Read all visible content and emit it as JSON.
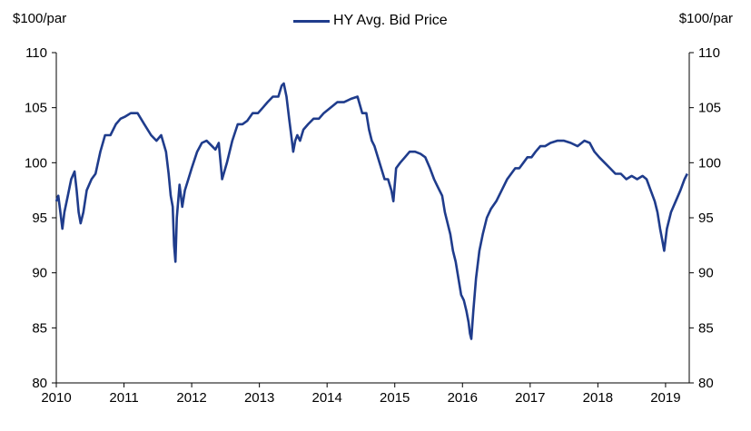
{
  "chart_data": {
    "type": "line",
    "title": "",
    "y_unit_left": "$100/par",
    "y_unit_right": "$100/par",
    "ylim": [
      80,
      110
    ],
    "yticks": [
      80,
      85,
      90,
      95,
      100,
      105,
      110
    ],
    "xlim": [
      2010,
      2019.35
    ],
    "xticks": [
      "2010",
      "2011",
      "2012",
      "2013",
      "2014",
      "2015",
      "2016",
      "2017",
      "2018",
      "2019"
    ],
    "grid": false,
    "legend_position": "top-center",
    "series": [
      {
        "name": "HY Avg. Bid Price",
        "color": "#1f3c8c",
        "x": [
          2010.0,
          2010.03,
          2010.06,
          2010.09,
          2010.12,
          2010.17,
          2010.22,
          2010.27,
          2010.3,
          2010.33,
          2010.36,
          2010.4,
          2010.45,
          2010.52,
          2010.58,
          2010.65,
          2010.72,
          2010.8,
          2010.88,
          2010.95,
          2011.02,
          2011.1,
          2011.2,
          2011.3,
          2011.4,
          2011.48,
          2011.55,
          2011.62,
          2011.66,
          2011.69,
          2011.72,
          2011.74,
          2011.76,
          2011.78,
          2011.82,
          2011.86,
          2011.9,
          2011.95,
          2012.0,
          2012.08,
          2012.15,
          2012.22,
          2012.3,
          2012.35,
          2012.4,
          2012.45,
          2012.52,
          2012.6,
          2012.68,
          2012.75,
          2012.82,
          2012.9,
          2012.98,
          2013.05,
          2013.12,
          2013.2,
          2013.28,
          2013.33,
          2013.36,
          2013.4,
          2013.44,
          2013.47,
          2013.5,
          2013.53,
          2013.56,
          2013.6,
          2013.65,
          2013.72,
          2013.8,
          2013.88,
          2013.95,
          2014.05,
          2014.15,
          2014.25,
          2014.35,
          2014.45,
          2014.52,
          2014.58,
          2014.62,
          2014.66,
          2014.7,
          2014.75,
          2014.8,
          2014.85,
          2014.9,
          2014.95,
          2014.98,
          2015.02,
          2015.08,
          2015.15,
          2015.22,
          2015.3,
          2015.38,
          2015.45,
          2015.52,
          2015.58,
          2015.62,
          2015.66,
          2015.7,
          2015.74,
          2015.78,
          2015.82,
          2015.86,
          2015.9,
          2015.94,
          2015.98,
          2016.02,
          2016.06,
          2016.09,
          2016.11,
          2016.13,
          2016.16,
          2016.2,
          2016.25,
          2016.3,
          2016.36,
          2016.42,
          2016.5,
          2016.58,
          2016.66,
          2016.72,
          2016.78,
          2016.84,
          2016.9,
          2016.96,
          2017.02,
          2017.08,
          2017.15,
          2017.22,
          2017.3,
          2017.4,
          2017.5,
          2017.6,
          2017.7,
          2017.8,
          2017.88,
          2017.95,
          2018.02,
          2018.1,
          2018.18,
          2018.26,
          2018.34,
          2018.42,
          2018.5,
          2018.58,
          2018.66,
          2018.72,
          2018.78,
          2018.84,
          2018.88,
          2018.92,
          2018.95,
          2018.98,
          2019.02,
          2019.08,
          2019.15,
          2019.22,
          2019.28,
          2019.32
        ],
        "values": [
          96.5,
          97.0,
          95.5,
          94.0,
          95.5,
          97.0,
          98.5,
          99.2,
          97.5,
          95.5,
          94.5,
          95.5,
          97.5,
          98.5,
          99.0,
          101.0,
          102.5,
          102.5,
          103.5,
          104.0,
          104.2,
          104.5,
          104.5,
          103.5,
          102.5,
          102.0,
          102.5,
          101.0,
          99.0,
          97.0,
          96.0,
          92.5,
          91.0,
          95.0,
          98.0,
          96.0,
          97.5,
          98.5,
          99.5,
          101.0,
          101.8,
          102.0,
          101.5,
          101.2,
          101.8,
          98.5,
          100.0,
          102.0,
          103.5,
          103.5,
          103.8,
          104.5,
          104.5,
          105.0,
          105.5,
          106.0,
          106.0,
          107.0,
          107.2,
          106.0,
          104.0,
          102.5,
          101.0,
          102.0,
          102.5,
          102.0,
          103.0,
          103.5,
          104.0,
          104.0,
          104.5,
          105.0,
          105.5,
          105.5,
          105.8,
          106.0,
          104.5,
          104.5,
          103.0,
          102.0,
          101.5,
          100.5,
          99.5,
          98.5,
          98.5,
          97.5,
          96.5,
          99.5,
          100.0,
          100.5,
          101.0,
          101.0,
          100.8,
          100.5,
          99.5,
          98.5,
          98.0,
          97.5,
          97.0,
          95.5,
          94.5,
          93.5,
          92.0,
          91.0,
          89.5,
          88.0,
          87.5,
          86.5,
          85.5,
          84.5,
          84.0,
          86.5,
          89.5,
          92.0,
          93.5,
          95.0,
          95.8,
          96.5,
          97.5,
          98.5,
          99.0,
          99.5,
          99.5,
          100.0,
          100.5,
          100.5,
          101.0,
          101.5,
          101.5,
          101.8,
          102.0,
          102.0,
          101.8,
          101.5,
          102.0,
          101.8,
          101.0,
          100.5,
          100.0,
          99.5,
          99.0,
          99.0,
          98.5,
          98.8,
          98.5,
          98.8,
          98.5,
          97.5,
          96.5,
          95.5,
          94.0,
          93.0,
          92.0,
          94.0,
          95.5,
          96.5,
          97.5,
          98.5,
          99.0
        ]
      }
    ]
  }
}
